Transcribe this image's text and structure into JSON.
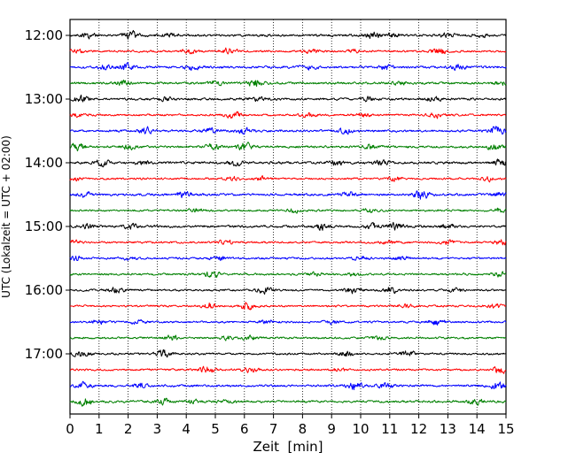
{
  "chart_data": {
    "type": "line",
    "title": "",
    "xlabel": "Zeit  [min]",
    "ylabel": "UTC (Lokalzeit = UTC + 02:00)",
    "xlim": [
      0,
      15
    ],
    "x_ticks": [
      0,
      1,
      2,
      3,
      4,
      5,
      6,
      7,
      8,
      9,
      10,
      11,
      12,
      13,
      14,
      15
    ],
    "y_tick_labels": [
      "12:00",
      "13:00",
      "14:00",
      "15:00",
      "16:00",
      "17:00"
    ],
    "x_grid": "dotted vertical lines at every minute",
    "trace_minutes": 15,
    "trace_start_times": [
      "12:00",
      "12:15",
      "12:30",
      "12:45",
      "13:00",
      "13:15",
      "13:30",
      "13:45",
      "14:00",
      "14:15",
      "14:30",
      "14:45",
      "15:00",
      "15:15",
      "15:30",
      "15:45",
      "16:00",
      "16:15",
      "16:30",
      "16:45",
      "17:00",
      "17:15",
      "17:30",
      "17:45"
    ],
    "trace_colors": [
      "#000000",
      "#ff0000",
      "#0000ff",
      "#008000"
    ],
    "traces": [
      {
        "start": "12:00",
        "color": "#000000",
        "noise": 0.35,
        "events": [
          [
            0.6,
            0.7
          ],
          [
            2.1,
            1.1
          ],
          [
            3.4,
            0.6
          ],
          [
            10.4,
            0.9
          ],
          [
            11.1,
            0.6
          ],
          [
            13.0,
            0.5
          ],
          [
            14.1,
            0.5
          ]
        ]
      },
      {
        "start": "12:15",
        "color": "#ff0000",
        "noise": 0.3,
        "events": [
          [
            0.2,
            0.5
          ],
          [
            4.1,
            0.6
          ],
          [
            5.5,
            1.0
          ],
          [
            8.3,
            0.6
          ],
          [
            9.8,
            0.5
          ],
          [
            12.7,
            0.9
          ]
        ]
      },
      {
        "start": "12:30",
        "color": "#0000ff",
        "noise": 0.35,
        "events": [
          [
            1.2,
            0.6
          ],
          [
            1.9,
            1.1
          ],
          [
            4.2,
            0.8
          ],
          [
            8.2,
            0.6
          ],
          [
            10.9,
            0.7
          ],
          [
            13.4,
            0.7
          ]
        ]
      },
      {
        "start": "12:45",
        "color": "#008000",
        "noise": 0.35,
        "events": [
          [
            1.8,
            0.6
          ],
          [
            5.0,
            0.6
          ],
          [
            6.4,
            1.2
          ],
          [
            11.3,
            0.5
          ],
          [
            14.8,
            0.6
          ]
        ]
      },
      {
        "start": "13:00",
        "color": "#000000",
        "noise": 0.35,
        "events": [
          [
            0.4,
            0.9
          ],
          [
            3.3,
            0.5
          ],
          [
            6.5,
            0.5
          ],
          [
            10.3,
            0.6
          ],
          [
            12.5,
            0.5
          ]
        ]
      },
      {
        "start": "13:15",
        "color": "#ff0000",
        "noise": 0.3,
        "events": [
          [
            0.3,
            0.5
          ],
          [
            5.6,
            1.0
          ],
          [
            8.2,
            0.6
          ],
          [
            10.1,
            0.5
          ],
          [
            12.6,
            0.8
          ]
        ]
      },
      {
        "start": "13:30",
        "color": "#0000ff",
        "noise": 0.35,
        "events": [
          [
            2.6,
            0.9
          ],
          [
            4.8,
            0.7
          ],
          [
            6.0,
            0.7
          ],
          [
            9.5,
            0.7
          ],
          [
            14.7,
            1.3
          ]
        ]
      },
      {
        "start": "13:45",
        "color": "#008000",
        "noise": 0.35,
        "events": [
          [
            0.3,
            1.1
          ],
          [
            2.0,
            0.6
          ],
          [
            4.9,
            0.7
          ],
          [
            6.0,
            1.2
          ],
          [
            10.3,
            0.5
          ],
          [
            14.6,
            0.8
          ]
        ]
      },
      {
        "start": "14:00",
        "color": "#000000",
        "noise": 0.35,
        "events": [
          [
            1.1,
            0.9
          ],
          [
            2.5,
            0.5
          ],
          [
            5.7,
            0.8
          ],
          [
            9.2,
            0.7
          ],
          [
            10.7,
            0.8
          ],
          [
            14.8,
            0.8
          ]
        ]
      },
      {
        "start": "14:15",
        "color": "#ff0000",
        "noise": 0.3,
        "events": [
          [
            0.1,
            0.6
          ],
          [
            5.6,
            0.6
          ],
          [
            6.6,
            0.5
          ],
          [
            11.2,
            0.6
          ],
          [
            14.4,
            0.6
          ]
        ]
      },
      {
        "start": "14:30",
        "color": "#0000ff",
        "noise": 0.35,
        "events": [
          [
            0.5,
            0.8
          ],
          [
            3.9,
            0.9
          ],
          [
            9.6,
            0.6
          ],
          [
            12.1,
            1.3
          ],
          [
            14.8,
            0.7
          ]
        ]
      },
      {
        "start": "14:45",
        "color": "#008000",
        "noise": 0.3,
        "events": [
          [
            4.3,
            0.5
          ],
          [
            7.7,
            0.5
          ],
          [
            10.3,
            0.5
          ],
          [
            14.8,
            0.6
          ]
        ]
      },
      {
        "start": "15:00",
        "color": "#000000",
        "noise": 0.35,
        "events": [
          [
            0.6,
            0.7
          ],
          [
            2.1,
            0.6
          ],
          [
            8.7,
            0.9
          ],
          [
            10.4,
            0.8
          ],
          [
            11.2,
            1.0
          ],
          [
            13.0,
            0.6
          ]
        ]
      },
      {
        "start": "15:15",
        "color": "#ff0000",
        "noise": 0.3,
        "events": [
          [
            0.1,
            0.5
          ],
          [
            5.3,
            0.7
          ],
          [
            10.9,
            0.6
          ],
          [
            13.0,
            0.6
          ],
          [
            14.8,
            0.7
          ]
        ]
      },
      {
        "start": "15:30",
        "color": "#0000ff",
        "noise": 0.3,
        "events": [
          [
            0.2,
            0.7
          ],
          [
            2.0,
            0.5
          ],
          [
            5.1,
            0.7
          ],
          [
            10.0,
            0.7
          ],
          [
            11.4,
            0.6
          ]
        ]
      },
      {
        "start": "15:45",
        "color": "#008000",
        "noise": 0.3,
        "events": [
          [
            4.9,
            1.0
          ],
          [
            8.4,
            0.5
          ],
          [
            9.8,
            0.5
          ],
          [
            14.8,
            0.7
          ]
        ]
      },
      {
        "start": "16:00",
        "color": "#000000",
        "noise": 0.3,
        "events": [
          [
            1.6,
            0.8
          ],
          [
            6.7,
            0.8
          ],
          [
            9.7,
            0.8
          ],
          [
            11.0,
            0.9
          ],
          [
            13.3,
            0.6
          ]
        ]
      },
      {
        "start": "16:15",
        "color": "#ff0000",
        "noise": 0.3,
        "events": [
          [
            4.8,
            0.9
          ],
          [
            6.1,
            1.0
          ],
          [
            11.6,
            0.5
          ],
          [
            14.6,
            0.6
          ]
        ]
      },
      {
        "start": "16:30",
        "color": "#0000ff",
        "noise": 0.3,
        "events": [
          [
            1.0,
            0.6
          ],
          [
            2.3,
            0.5
          ],
          [
            6.8,
            0.5
          ],
          [
            9.0,
            0.5
          ],
          [
            12.6,
            1.0
          ]
        ]
      },
      {
        "start": "16:45",
        "color": "#008000",
        "noise": 0.3,
        "events": [
          [
            3.5,
            0.8
          ],
          [
            5.4,
            0.6
          ],
          [
            6.2,
            0.6
          ],
          [
            10.6,
            0.5
          ]
        ]
      },
      {
        "start": "17:00",
        "color": "#000000",
        "noise": 0.3,
        "events": [
          [
            0.4,
            1.0
          ],
          [
            3.2,
            1.1
          ],
          [
            9.5,
            0.8
          ],
          [
            11.6,
            1.0
          ]
        ]
      },
      {
        "start": "17:15",
        "color": "#ff0000",
        "noise": 0.3,
        "events": [
          [
            4.7,
            0.9
          ],
          [
            6.2,
            0.7
          ],
          [
            9.3,
            0.5
          ],
          [
            14.8,
            0.9
          ]
        ]
      },
      {
        "start": "17:30",
        "color": "#0000ff",
        "noise": 0.35,
        "events": [
          [
            0.5,
            0.9
          ],
          [
            2.4,
            0.6
          ],
          [
            9.8,
            1.1
          ],
          [
            10.8,
            0.7
          ],
          [
            14.7,
            1.3
          ]
        ]
      },
      {
        "start": "17:45",
        "color": "#008000",
        "noise": 0.35,
        "events": [
          [
            0.5,
            1.0
          ],
          [
            3.2,
            0.7
          ],
          [
            4.2,
            0.6
          ],
          [
            5.4,
            0.5
          ],
          [
            14.0,
            0.8
          ]
        ]
      }
    ]
  }
}
